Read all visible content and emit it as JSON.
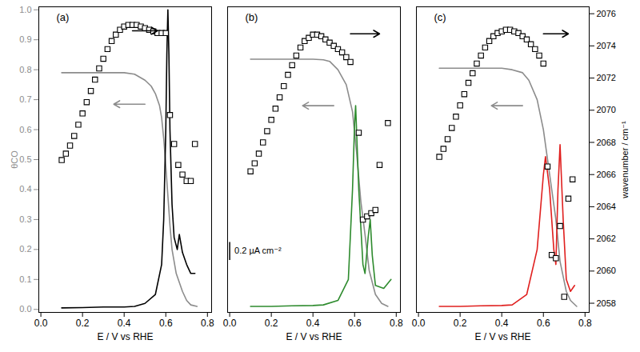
{
  "chart_data": [
    {
      "type": "line",
      "title": "(a)",
      "xlabel": "E / V vs RHE",
      "ylabel": "θCO",
      "xlim": [
        -0.01,
        0.82
      ],
      "xticks": [
        {
          "value": 0.0,
          "label": "0.0"
        },
        {
          "value": 0.2,
          "label": "0.2"
        },
        {
          "value": 0.4,
          "label": "0.4"
        },
        {
          "value": 0.6,
          "label": "0.6"
        },
        {
          "value": 0.8,
          "label": "0.8"
        }
      ],
      "ylim": [
        -0.01,
        1.01
      ],
      "yticks": [
        {
          "value": 0.0,
          "label": "0.0"
        },
        {
          "value": 0.1,
          "label": "0.1"
        },
        {
          "value": 0.2,
          "label": "0.2"
        },
        {
          "value": 0.3,
          "label": "0.3"
        },
        {
          "value": 0.4,
          "label": "0.4"
        },
        {
          "value": 0.5,
          "label": "0.5"
        },
        {
          "value": 0.6,
          "label": "0.6"
        },
        {
          "value": 0.7,
          "label": "0.7"
        },
        {
          "value": 0.8,
          "label": "0.8"
        },
        {
          "value": 0.9,
          "label": "0.9"
        },
        {
          "value": 1.0,
          "label": "1.0"
        }
      ],
      "y2lim": [
        2057.43,
        2076.43
      ],
      "series": [
        {
          "type": "line",
          "color": "#8c8c8c",
          "axis": "y",
          "x": [
            0.1,
            0.2,
            0.3,
            0.4,
            0.45,
            0.5,
            0.53,
            0.55,
            0.57,
            0.58,
            0.59,
            0.6,
            0.61,
            0.62,
            0.63,
            0.65,
            0.68,
            0.7,
            0.72,
            0.75
          ],
          "values": [
            0.79,
            0.79,
            0.79,
            0.79,
            0.785,
            0.765,
            0.745,
            0.72,
            0.68,
            0.64,
            0.57,
            0.48,
            0.38,
            0.28,
            0.2,
            0.12,
            0.06,
            0.03,
            0.015,
            0.01
          ]
        },
        {
          "type": "line",
          "color": "#000000",
          "axis": "y",
          "x": [
            0.1,
            0.2,
            0.3,
            0.4,
            0.45,
            0.5,
            0.55,
            0.58,
            0.59,
            0.6,
            0.605,
            0.61,
            0.615,
            0.62,
            0.63,
            0.64,
            0.655,
            0.665,
            0.68,
            0.7,
            0.72,
            0.74
          ],
          "values": [
            0.005,
            0.006,
            0.008,
            0.008,
            0.01,
            0.02,
            0.05,
            0.15,
            0.3,
            0.6,
            0.85,
            1.0,
            0.85,
            0.6,
            0.35,
            0.24,
            0.2,
            0.25,
            0.19,
            0.15,
            0.12,
            0.12
          ]
        },
        {
          "type": "scatter",
          "marker": "square",
          "color": "#000000",
          "axis": "y2",
          "x": [
            0.1,
            0.12,
            0.14,
            0.16,
            0.18,
            0.2,
            0.22,
            0.24,
            0.26,
            0.28,
            0.3,
            0.32,
            0.34,
            0.36,
            0.38,
            0.4,
            0.42,
            0.44,
            0.46,
            0.48,
            0.5,
            0.52,
            0.54,
            0.56,
            0.58,
            0.6,
            0.62,
            0.64,
            0.66,
            0.68,
            0.7,
            0.72,
            0.74
          ],
          "values": [
            2066.9,
            2067.3,
            2067.8,
            2068.4,
            2069.1,
            2069.8,
            2070.5,
            2071.2,
            2071.9,
            2072.6,
            2073.2,
            2073.8,
            2074.3,
            2074.7,
            2075.0,
            2075.2,
            2075.3,
            2075.3,
            2075.3,
            2075.2,
            2075.1,
            2075.0,
            2074.9,
            2074.8,
            2074.8,
            2074.8,
            2069.7,
            2067.9,
            2066.6,
            2066.0,
            2065.6,
            2065.6,
            2067.9
          ]
        }
      ],
      "arrows": [
        {
          "x1": 0.44,
          "x2": 0.56,
          "y": 0.93,
          "color": "#000000"
        },
        {
          "x1": 0.5,
          "x2": 0.35,
          "y": 0.685,
          "color": "#8c8c8c"
        }
      ]
    },
    {
      "type": "line",
      "title": "(b)",
      "xlabel": "E / V vs RHE",
      "tick_labels": "x",
      "xlim": [
        -0.01,
        0.82
      ],
      "xticks": [
        {
          "value": 0.0,
          "label": "0.0"
        },
        {
          "value": 0.2,
          "label": "0.2"
        },
        {
          "value": 0.4,
          "label": "0.4"
        },
        {
          "value": 0.6,
          "label": "0.6"
        },
        {
          "value": 0.8,
          "label": "0.8"
        }
      ],
      "ylim": [
        -0.01,
        1.01
      ],
      "y2lim": [
        2057.43,
        2076.43
      ],
      "series": [
        {
          "type": "line",
          "color": "#8c8c8c",
          "axis": "y",
          "x": [
            0.1,
            0.2,
            0.3,
            0.4,
            0.45,
            0.48,
            0.52,
            0.56,
            0.59,
            0.61,
            0.63,
            0.65,
            0.67,
            0.7,
            0.73,
            0.76
          ],
          "values": [
            0.835,
            0.835,
            0.835,
            0.835,
            0.833,
            0.828,
            0.8,
            0.75,
            0.66,
            0.52,
            0.36,
            0.25,
            0.13,
            0.05,
            0.02,
            0.01
          ]
        },
        {
          "type": "line",
          "color": "#2e8b2e",
          "axis": "y",
          "x": [
            0.1,
            0.2,
            0.3,
            0.4,
            0.45,
            0.52,
            0.57,
            0.59,
            0.6,
            0.605,
            0.62,
            0.64,
            0.65,
            0.665,
            0.675,
            0.685,
            0.7,
            0.74,
            0.775
          ],
          "values": [
            0.01,
            0.01,
            0.012,
            0.013,
            0.015,
            0.03,
            0.1,
            0.4,
            0.62,
            0.68,
            0.4,
            0.15,
            0.12,
            0.24,
            0.3,
            0.18,
            0.08,
            0.07,
            0.1
          ]
        },
        {
          "type": "scatter",
          "marker": "square",
          "color": "#000000",
          "axis": "y2",
          "x": [
            0.1,
            0.12,
            0.14,
            0.16,
            0.18,
            0.2,
            0.22,
            0.24,
            0.26,
            0.28,
            0.3,
            0.32,
            0.34,
            0.36,
            0.38,
            0.4,
            0.42,
            0.44,
            0.46,
            0.48,
            0.5,
            0.52,
            0.54,
            0.56,
            0.58,
            0.62,
            0.64,
            0.66,
            0.68,
            0.7,
            0.72,
            0.76
          ],
          "values": [
            2066.2,
            2066.7,
            2067.3,
            2068.0,
            2068.7,
            2069.4,
            2070.1,
            2070.8,
            2071.5,
            2072.2,
            2072.8,
            2073.4,
            2073.9,
            2074.3,
            2074.5,
            2074.7,
            2074.7,
            2074.6,
            2074.4,
            2074.2,
            2074.0,
            2073.8,
            2073.6,
            2073.3,
            2073.0,
            2068.6,
            2063.2,
            2063.4,
            2063.6,
            2063.8,
            2066.6,
            2069.2
          ]
        }
      ],
      "arrows": [
        {
          "x1": 0.58,
          "x2": 0.72,
          "y": 0.92,
          "color": "#000000"
        },
        {
          "x1": 0.5,
          "x2": 0.35,
          "y": 0.68,
          "color": "#8c8c8c"
        }
      ],
      "scale_bar": {
        "x": 0.0,
        "y1": 0.165,
        "y2": 0.225,
        "label": "0.2 µA cm⁻²"
      }
    },
    {
      "type": "line",
      "title": "(c)",
      "xlabel": "E / V vs RHE",
      "y2label": "wavenumber / cm⁻¹",
      "xlim": [
        -0.01,
        0.82
      ],
      "xticks": [
        {
          "value": 0.0,
          "label": "0.0"
        },
        {
          "value": 0.2,
          "label": "0.2"
        },
        {
          "value": 0.4,
          "label": "0.4"
        },
        {
          "value": 0.6,
          "label": "0.6"
        },
        {
          "value": 0.8,
          "label": "0.8"
        }
      ],
      "ylim": [
        -0.01,
        1.01
      ],
      "y2lim": [
        2057.43,
        2076.43
      ],
      "y2ticks": [
        2058,
        2060,
        2062,
        2064,
        2066,
        2068,
        2070,
        2072,
        2074,
        2076
      ],
      "series": [
        {
          "type": "line",
          "color": "#8c8c8c",
          "axis": "y",
          "x": [
            0.1,
            0.2,
            0.3,
            0.4,
            0.45,
            0.5,
            0.53,
            0.57,
            0.6,
            0.63,
            0.66,
            0.68,
            0.71,
            0.73,
            0.76
          ],
          "values": [
            0.805,
            0.805,
            0.805,
            0.805,
            0.8,
            0.79,
            0.765,
            0.7,
            0.6,
            0.45,
            0.3,
            0.16,
            0.06,
            0.03,
            0.01
          ]
        },
        {
          "type": "line",
          "color": "#e0201f",
          "axis": "y",
          "x": [
            0.1,
            0.2,
            0.3,
            0.4,
            0.45,
            0.52,
            0.57,
            0.6,
            0.61,
            0.63,
            0.65,
            0.66,
            0.67,
            0.68,
            0.695,
            0.71,
            0.73,
            0.75
          ],
          "values": [
            0.01,
            0.01,
            0.012,
            0.013,
            0.015,
            0.05,
            0.2,
            0.45,
            0.51,
            0.4,
            0.2,
            0.15,
            0.4,
            0.55,
            0.3,
            0.1,
            0.06,
            0.08
          ]
        },
        {
          "type": "scatter",
          "marker": "square",
          "color": "#000000",
          "axis": "y2",
          "x": [
            0.1,
            0.12,
            0.14,
            0.16,
            0.18,
            0.2,
            0.22,
            0.24,
            0.26,
            0.28,
            0.3,
            0.32,
            0.34,
            0.36,
            0.38,
            0.4,
            0.42,
            0.44,
            0.46,
            0.48,
            0.5,
            0.52,
            0.54,
            0.56,
            0.58,
            0.6,
            0.62,
            0.64,
            0.66,
            0.68,
            0.7,
            0.72,
            0.74
          ],
          "values": [
            2067.1,
            2067.6,
            2068.2,
            2068.9,
            2069.6,
            2070.3,
            2071.0,
            2071.7,
            2072.3,
            2072.9,
            2073.4,
            2073.9,
            2074.3,
            2074.6,
            2074.8,
            2074.9,
            2075.0,
            2075.0,
            2074.9,
            2074.8,
            2074.6,
            2074.4,
            2074.1,
            2073.8,
            2073.4,
            2072.9,
            2066.5,
            2061.0,
            2060.8,
            2062.8,
            2058.4,
            2064.5,
            2065.7
          ]
        }
      ],
      "arrows": [
        {
          "x1": 0.6,
          "x2": 0.72,
          "y": 0.92,
          "color": "#000000"
        },
        {
          "x1": 0.5,
          "x2": 0.35,
          "y": 0.68,
          "color": "#8c8c8c"
        }
      ]
    }
  ]
}
